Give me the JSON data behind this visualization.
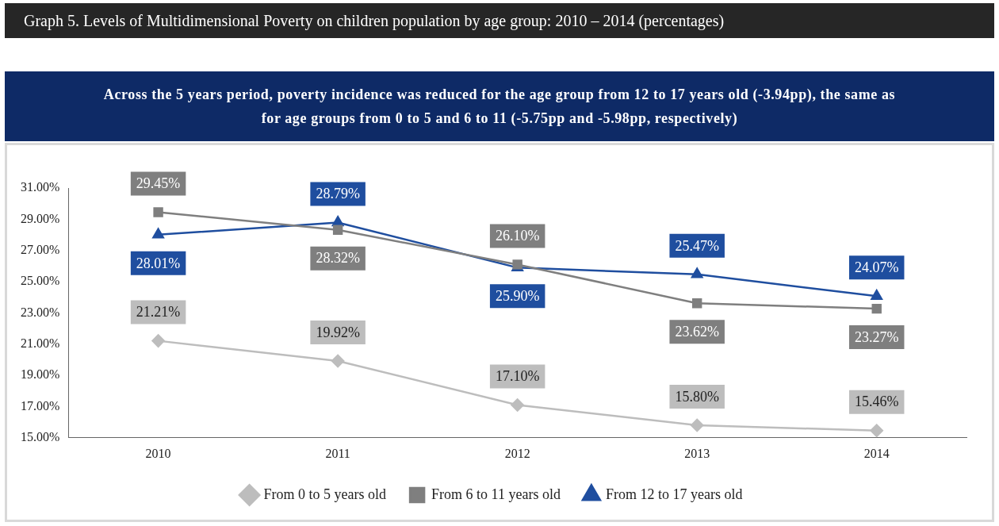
{
  "chart_data": {
    "type": "line",
    "title": "Graph 5. Levels of Multidimensional Poverty on children population by age group: 2010 – 2014 (percentages)",
    "subtitle": "Across the 5 years period, poverty incidence was reduced for the age group from 12 to 17 years old (-3.94pp), the same as for age groups from 0 to 5 and 6 to 11 (-5.75pp and -5.98pp, respectively)",
    "categories": [
      "2010",
      "2011",
      "2012",
      "2013",
      "2014"
    ],
    "series": [
      {
        "name": "From 0 to 5 years old",
        "color": "#bdbdbd",
        "marker": "diamond",
        "values": [
          21.21,
          19.92,
          17.1,
          15.8,
          15.46
        ],
        "value_labels": [
          "21.21%",
          "19.92%",
          "17.10%",
          "15.80%",
          "15.46%"
        ]
      },
      {
        "name": "From 6 to 11 years old",
        "color": "#7f7f7f",
        "marker": "square",
        "values": [
          29.45,
          28.32,
          26.1,
          23.62,
          23.27
        ],
        "value_labels": [
          "29.45%",
          "28.32%",
          "26.10%",
          "23.62%",
          "23.27%"
        ]
      },
      {
        "name": "From 12 to 17 years old",
        "color": "#1f4e9f",
        "marker": "triangle",
        "values": [
          28.01,
          28.79,
          25.9,
          25.47,
          24.07
        ],
        "value_labels": [
          "28.01%",
          "28.79%",
          "25.90%",
          "25.47%",
          "24.07%"
        ]
      }
    ],
    "ylim": [
      15,
      31
    ],
    "yticks": [
      {
        "value": 15,
        "label": "15.00%"
      },
      {
        "value": 17,
        "label": "17.00%"
      },
      {
        "value": 19,
        "label": "19.00%"
      },
      {
        "value": 21,
        "label": "21.00%"
      },
      {
        "value": 23,
        "label": "23.00%"
      },
      {
        "value": 25,
        "label": "25.00%"
      },
      {
        "value": 27,
        "label": "27.00%"
      },
      {
        "value": 29,
        "label": "29.00%"
      },
      {
        "value": 31,
        "label": "31.00%"
      }
    ],
    "grid": false,
    "legend": "bottom",
    "line_style": "solid"
  }
}
